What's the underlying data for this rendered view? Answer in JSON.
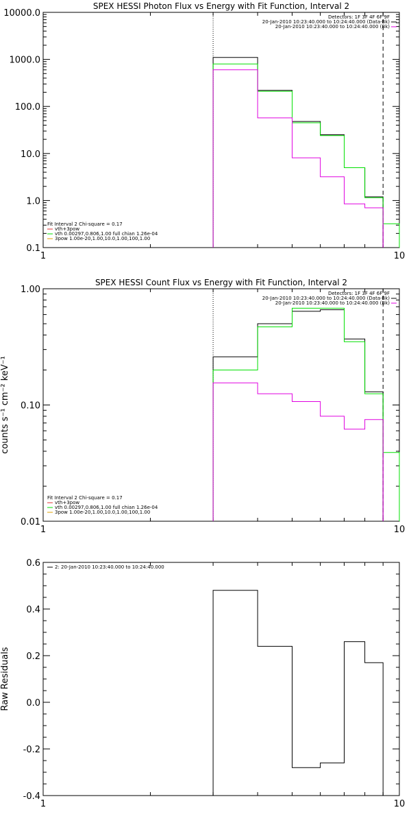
{
  "chart_data": [
    {
      "type": "line",
      "title": "SPEX HESSI Photon Flux vs Energy with Fit Function, Interval 2",
      "xlabel": "",
      "ylabel": "",
      "xscale": "log",
      "yscale": "log",
      "xlim": [
        1,
        10
      ],
      "ylim": [
        0.1,
        10000
      ],
      "yticks": [
        {
          "v": 0.1,
          "label": "0.1"
        },
        {
          "v": 1,
          "label": "1.0"
        },
        {
          "v": 10,
          "label": "10.0"
        },
        {
          "v": 100,
          "label": "100.0"
        },
        {
          "v": 1000,
          "label": "1000.0"
        },
        {
          "v": 10000,
          "label": "10000.0"
        }
      ],
      "xticks": [
        {
          "v": 1,
          "label": "1"
        },
        {
          "v": 10,
          "label": "10"
        }
      ],
      "vlines": [
        {
          "x": 3.0,
          "style": "dotted"
        },
        {
          "x": 9.0,
          "style": "dashed"
        }
      ],
      "legend_top": [
        "Detectors: 1F 3F 4F 6F 9F",
        "20-Jan-2010 10:23:40.000 to 10:24:40.000 (Data-Bk)",
        "20-Jan-2010 10:23:40.000 to 10:24:40.000 (Bk)"
      ],
      "legend_bottom": [
        "Fit Interval 2   Chi-square = 0.17",
        "vth+3pow",
        "vth 0.00297,0.806,1.00  full chian 1.26e-04",
        "3pow 1.00e-20,1.00,10.0,1.00,100,1.00"
      ],
      "series": [
        {
          "color": "#000000",
          "edges": [
            3,
            4,
            5,
            6,
            7,
            8,
            9
          ],
          "values": [
            1100,
            220,
            48,
            25,
            5,
            1.2
          ]
        },
        {
          "color": "#00e000",
          "edges": [
            3,
            4,
            5,
            6,
            7,
            8,
            9,
            10
          ],
          "values": [
            800,
            210,
            45,
            24,
            5,
            1.15,
            0.32
          ]
        },
        {
          "color": "#e000e0",
          "edges": [
            3,
            4,
            5,
            6,
            7,
            8,
            9
          ],
          "values": [
            600,
            57,
            8.1,
            3.2,
            0.85,
            0.7
          ]
        }
      ]
    },
    {
      "type": "line",
      "title": "SPEX HESSI Count Flux vs Energy with Fit Function, Interval 2",
      "xlabel": "",
      "ylabel": "counts s⁻¹ cm⁻² keV⁻¹",
      "xscale": "log",
      "yscale": "log",
      "xlim": [
        1,
        10
      ],
      "ylim": [
        0.01,
        1.0
      ],
      "yticks": [
        {
          "v": 0.01,
          "label": "0.01"
        },
        {
          "v": 0.1,
          "label": "0.10"
        },
        {
          "v": 1.0,
          "label": "1.00"
        }
      ],
      "xticks": [
        {
          "v": 1,
          "label": "1"
        },
        {
          "v": 10,
          "label": "10"
        }
      ],
      "vlines": [
        {
          "x": 3.0,
          "style": "dotted"
        },
        {
          "x": 9.0,
          "style": "dashed"
        }
      ],
      "legend_top": [
        "Detectors: 1F 3F 4F 6F 9F",
        "20-Jan-2010 10:23:40.000 to 10:24:40.000 (Data-Bk)",
        "20-Jan-2010 10:23:40.000 to 10:24:40.000 (Bk)"
      ],
      "legend_bottom": [
        "Fit Interval 2   Chi-square = 0.17",
        "vth+3pow",
        "vth 0.00297,0.806,1.00  full chian 1.26e-04",
        "3pow 1.00e-20,1.00,10.0,1.00,100,1.00"
      ],
      "series": [
        {
          "color": "#000000",
          "edges": [
            3,
            4,
            5,
            6,
            7,
            8,
            9
          ],
          "values": [
            0.26,
            0.5,
            0.64,
            0.66,
            0.37,
            0.13
          ]
        },
        {
          "color": "#00e000",
          "edges": [
            3,
            4,
            5,
            6,
            7,
            8,
            9,
            10
          ],
          "values": [
            0.2,
            0.47,
            0.68,
            0.68,
            0.35,
            0.125,
            0.039
          ]
        },
        {
          "color": "#e000e0",
          "edges": [
            3,
            4,
            5,
            6,
            7,
            8,
            9
          ],
          "values": [
            0.155,
            0.125,
            0.107,
            0.08,
            0.062,
            0.075
          ]
        }
      ]
    },
    {
      "type": "line",
      "title": "",
      "xlabel": "",
      "ylabel": "Raw Residuals",
      "xscale": "log",
      "yscale": "linear",
      "xlim": [
        1,
        10
      ],
      "ylim": [
        -0.4,
        0.6
      ],
      "yticks": [
        {
          "v": -0.4,
          "label": "-0.4"
        },
        {
          "v": -0.2,
          "label": "-0.2"
        },
        {
          "v": 0.0,
          "label": "0.0"
        },
        {
          "v": 0.2,
          "label": "0.2"
        },
        {
          "v": 0.4,
          "label": "0.4"
        },
        {
          "v": 0.6,
          "label": "0.6"
        }
      ],
      "xticks": [
        {
          "v": 1,
          "label": "1"
        },
        {
          "v": 10,
          "label": "10"
        }
      ],
      "vlines": [],
      "legend_top": [
        "2: 20-Jan-2010 10:23:40.000 to 10:24:40.000"
      ],
      "legend_bottom": [],
      "series": [
        {
          "color": "#000000",
          "edges": [
            3,
            4,
            5,
            6,
            7,
            8,
            9
          ],
          "values": [
            0.48,
            0.24,
            -0.28,
            -0.26,
            0.26,
            0.17
          ]
        }
      ]
    }
  ]
}
